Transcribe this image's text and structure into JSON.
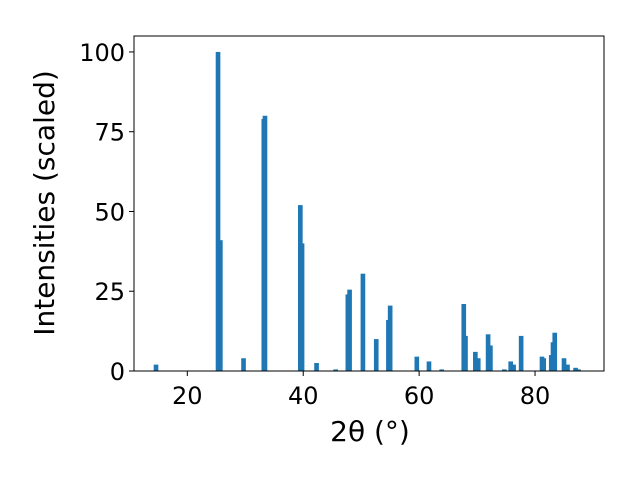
{
  "chart_data": {
    "type": "bar",
    "xlabel": "2θ (°)",
    "ylabel": "Intensities (scaled)",
    "xlim": [
      10.8,
      91.9
    ],
    "ylim": [
      0,
      105
    ],
    "x_ticks": [
      20,
      40,
      60,
      80
    ],
    "y_ticks": [
      0,
      25,
      50,
      75,
      100
    ],
    "color": "#1f77b4",
    "grid": false,
    "bar_width": 0.8,
    "series": [
      {
        "x": [
          14.6,
          25.3,
          25.7,
          29.7,
          33.2,
          33.4,
          39.5,
          39.8,
          42.3,
          45.6,
          47.7,
          48.0,
          50.3,
          52.6,
          54.7,
          55.0,
          59.6,
          61.7,
          63.9,
          67.7,
          68.0,
          69.7,
          70.2,
          71.9,
          72.3,
          74.7,
          75.8,
          76.3,
          77.6,
          81.2,
          81.5,
          82.8,
          83.1,
          83.4,
          85.0,
          85.6,
          87.0,
          87.5
        ],
        "y": [
          2,
          100,
          41,
          4,
          79,
          80,
          52,
          40,
          2.5,
          0.5,
          24,
          25.5,
          30.5,
          10,
          16,
          20.5,
          4.5,
          3,
          0.5,
          21,
          11,
          6,
          4,
          11.5,
          8,
          0.5,
          3,
          2,
          11,
          4.5,
          4,
          5,
          9,
          12,
          4,
          2,
          1,
          0.5
        ]
      }
    ]
  }
}
